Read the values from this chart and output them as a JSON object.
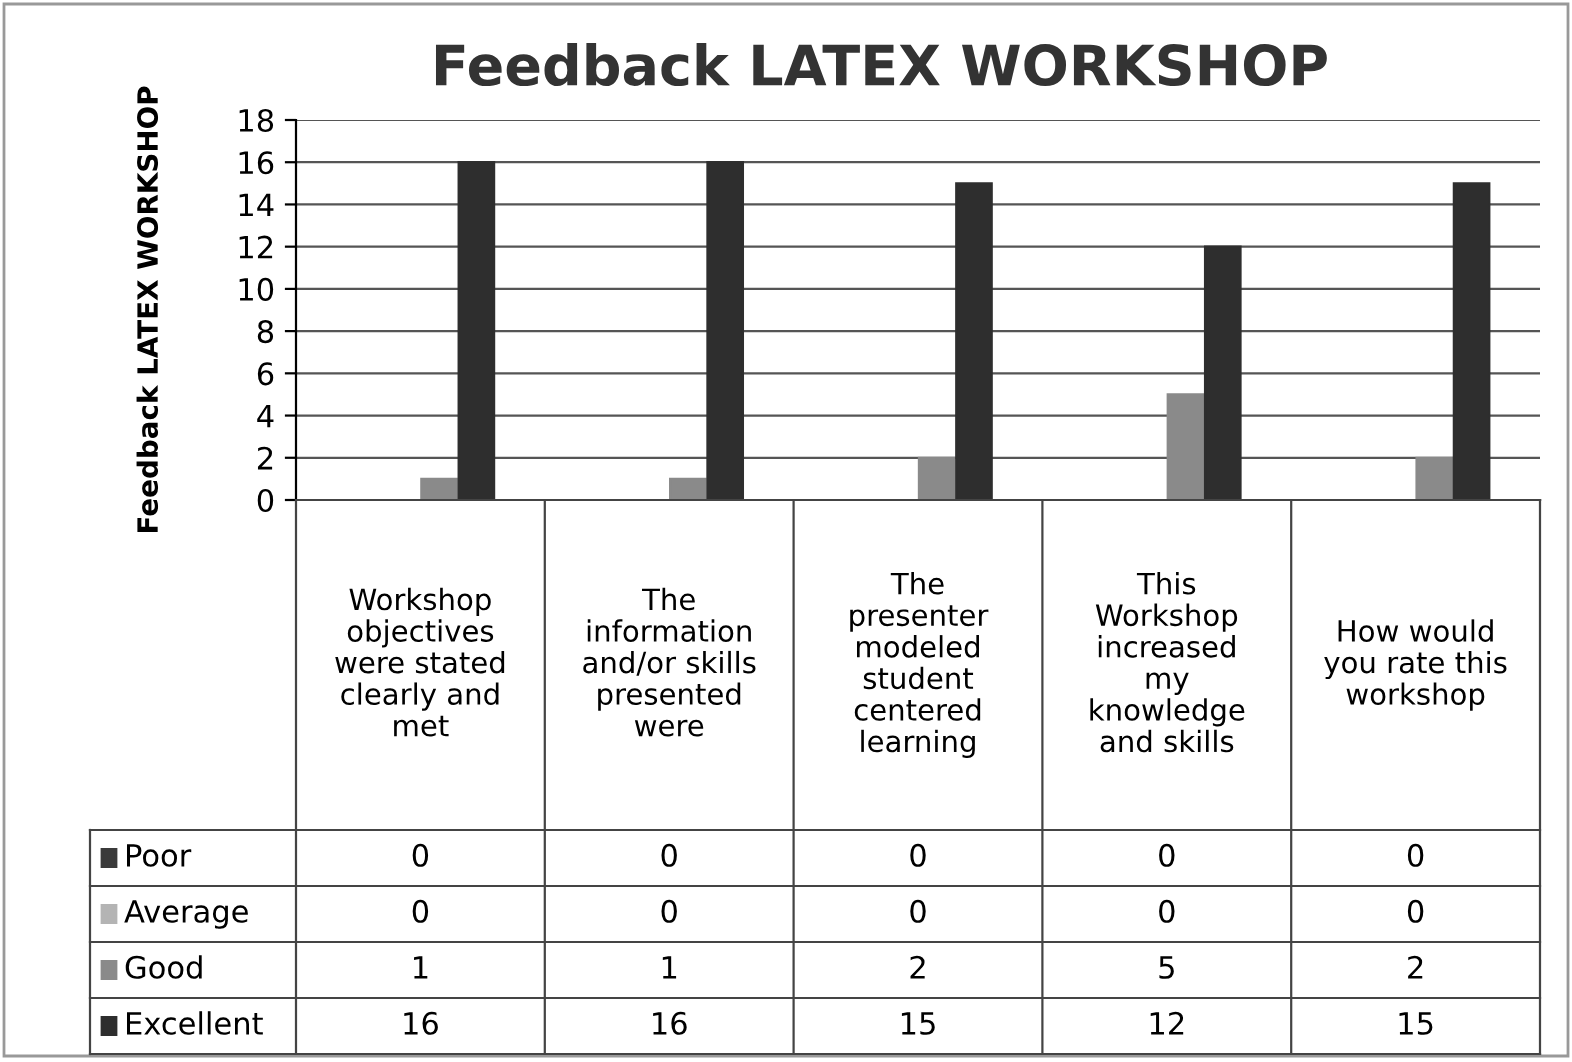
{
  "chart_data": {
    "type": "bar",
    "title": "Feedback LATEX WORKSHOP",
    "ylabel": "Feedback LATEX WORKSHOP",
    "categories": [
      "Workshop\nobjectives\nwere stated\nclearly and\nmet",
      "The\ninformation\nand/or skills\npresented\nwere",
      "The\npresenter\nmodeled\nstudent\ncentered\nlearning",
      "This\nWorkshop\nincreased\nmy\nknowledge\nand skills",
      "How would\nyou rate this\nworkshop"
    ],
    "series": [
      {
        "name": "Poor",
        "color": "#3a3a3a",
        "values": [
          0,
          0,
          0,
          0,
          0
        ]
      },
      {
        "name": "Average",
        "color": "#b4b4b4",
        "values": [
          0,
          0,
          0,
          0,
          0
        ]
      },
      {
        "name": "Good",
        "color": "#8a8a8a",
        "values": [
          1,
          1,
          2,
          5,
          2
        ]
      },
      {
        "name": "Excellent",
        "color": "#2e2e2e",
        "values": [
          16,
          16,
          15,
          12,
          15
        ]
      }
    ],
    "ylim": [
      0,
      18
    ],
    "yticks": [
      0,
      2,
      4,
      6,
      8,
      10,
      12,
      14,
      16,
      18
    ],
    "grid": "y",
    "legend": "bottom",
    "data_labels": true
  }
}
